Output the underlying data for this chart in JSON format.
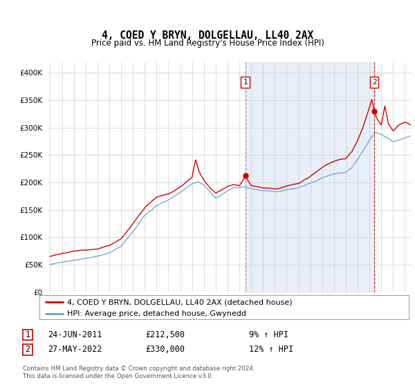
{
  "title": "4, COED Y BRYN, DOLGELLAU, LL40 2AX",
  "subtitle": "Price paid vs. HM Land Registry's House Price Index (HPI)",
  "legend_entry1": "4, COED Y BRYN, DOLGELLAU, LL40 2AX (detached house)",
  "legend_entry2": "HPI: Average price, detached house, Gwynedd",
  "annotation1_date": "24-JUN-2011",
  "annotation1_price": "£212,500",
  "annotation1_hpi": "9% ↑ HPI",
  "annotation1_year": 2011.5,
  "annotation1_value": 212500,
  "annotation2_date": "27-MAY-2022",
  "annotation2_price": "£330,000",
  "annotation2_hpi": "12% ↑ HPI",
  "annotation2_year": 2022.42,
  "annotation2_value": 330000,
  "footer": "Contains HM Land Registry data © Crown copyright and database right 2024.\nThis data is licensed under the Open Government Licence v3.0.",
  "hpi_color": "#6ca0d0",
  "price_color": "#cc0000",
  "shade_color": "#ddeeff",
  "plot_bg_color": "#ffffff",
  "grid_color": "#cccccc",
  "ylim": [
    0,
    420000
  ],
  "yticks": [
    0,
    50000,
    100000,
    150000,
    200000,
    250000,
    300000,
    350000,
    400000
  ],
  "xlim_start": 1994.8,
  "xlim_end": 2025.5,
  "hpi_anchors": [
    [
      1995.0,
      52000
    ],
    [
      1996.0,
      56000
    ],
    [
      1997.0,
      59000
    ],
    [
      1998.0,
      62000
    ],
    [
      1999.0,
      66000
    ],
    [
      2000.0,
      72000
    ],
    [
      2001.0,
      85000
    ],
    [
      2002.0,
      110000
    ],
    [
      2003.0,
      140000
    ],
    [
      2004.0,
      158000
    ],
    [
      2005.0,
      168000
    ],
    [
      2006.0,
      182000
    ],
    [
      2007.0,
      198000
    ],
    [
      2007.5,
      202000
    ],
    [
      2008.0,
      196000
    ],
    [
      2008.5,
      184000
    ],
    [
      2009.0,
      172000
    ],
    [
      2009.5,
      178000
    ],
    [
      2010.0,
      185000
    ],
    [
      2010.5,
      190000
    ],
    [
      2011.0,
      190000
    ],
    [
      2011.5,
      192000
    ],
    [
      2012.0,
      188000
    ],
    [
      2012.5,
      186000
    ],
    [
      2013.0,
      184000
    ],
    [
      2013.5,
      184000
    ],
    [
      2014.0,
      182000
    ],
    [
      2014.5,
      183000
    ],
    [
      2015.0,
      186000
    ],
    [
      2015.5,
      188000
    ],
    [
      2016.0,
      190000
    ],
    [
      2016.5,
      194000
    ],
    [
      2017.0,
      198000
    ],
    [
      2017.5,
      202000
    ],
    [
      2018.0,
      208000
    ],
    [
      2018.5,
      212000
    ],
    [
      2019.0,
      215000
    ],
    [
      2019.5,
      217000
    ],
    [
      2020.0,
      218000
    ],
    [
      2020.5,
      226000
    ],
    [
      2021.0,
      242000
    ],
    [
      2021.5,
      260000
    ],
    [
      2022.0,
      278000
    ],
    [
      2022.42,
      290000
    ],
    [
      2022.5,
      292000
    ],
    [
      2023.0,
      288000
    ],
    [
      2023.5,
      282000
    ],
    [
      2024.0,
      275000
    ],
    [
      2024.5,
      278000
    ],
    [
      2025.0,
      282000
    ],
    [
      2025.5,
      285000
    ]
  ],
  "red_anchors": [
    [
      1995.0,
      63000
    ],
    [
      1996.0,
      67000
    ],
    [
      1997.0,
      71000
    ],
    [
      1998.0,
      74000
    ],
    [
      1999.0,
      76000
    ],
    [
      2000.0,
      82000
    ],
    [
      2001.0,
      95000
    ],
    [
      2002.0,
      122000
    ],
    [
      2003.0,
      152000
    ],
    [
      2004.0,
      172000
    ],
    [
      2005.0,
      178000
    ],
    [
      2006.0,
      192000
    ],
    [
      2007.0,
      210000
    ],
    [
      2007.3,
      242000
    ],
    [
      2007.6,
      220000
    ],
    [
      2008.0,
      205000
    ],
    [
      2008.5,
      192000
    ],
    [
      2009.0,
      182000
    ],
    [
      2009.5,
      188000
    ],
    [
      2010.0,
      195000
    ],
    [
      2010.5,
      198000
    ],
    [
      2011.0,
      196000
    ],
    [
      2011.5,
      212500
    ],
    [
      2012.0,
      196000
    ],
    [
      2012.5,
      194000
    ],
    [
      2013.0,
      192000
    ],
    [
      2013.5,
      192000
    ],
    [
      2014.0,
      190000
    ],
    [
      2014.5,
      192000
    ],
    [
      2015.0,
      195000
    ],
    [
      2015.5,
      198000
    ],
    [
      2016.0,
      200000
    ],
    [
      2016.5,
      208000
    ],
    [
      2017.0,
      214000
    ],
    [
      2017.5,
      222000
    ],
    [
      2018.0,
      230000
    ],
    [
      2018.5,
      236000
    ],
    [
      2019.0,
      240000
    ],
    [
      2019.5,
      244000
    ],
    [
      2020.0,
      245000
    ],
    [
      2020.5,
      258000
    ],
    [
      2021.0,
      278000
    ],
    [
      2021.5,
      305000
    ],
    [
      2022.0,
      338000
    ],
    [
      2022.2,
      352000
    ],
    [
      2022.42,
      330000
    ],
    [
      2022.6,
      318000
    ],
    [
      2023.0,
      305000
    ],
    [
      2023.3,
      340000
    ],
    [
      2023.6,
      308000
    ],
    [
      2024.0,
      295000
    ],
    [
      2024.5,
      305000
    ],
    [
      2025.0,
      310000
    ],
    [
      2025.5,
      305000
    ]
  ]
}
